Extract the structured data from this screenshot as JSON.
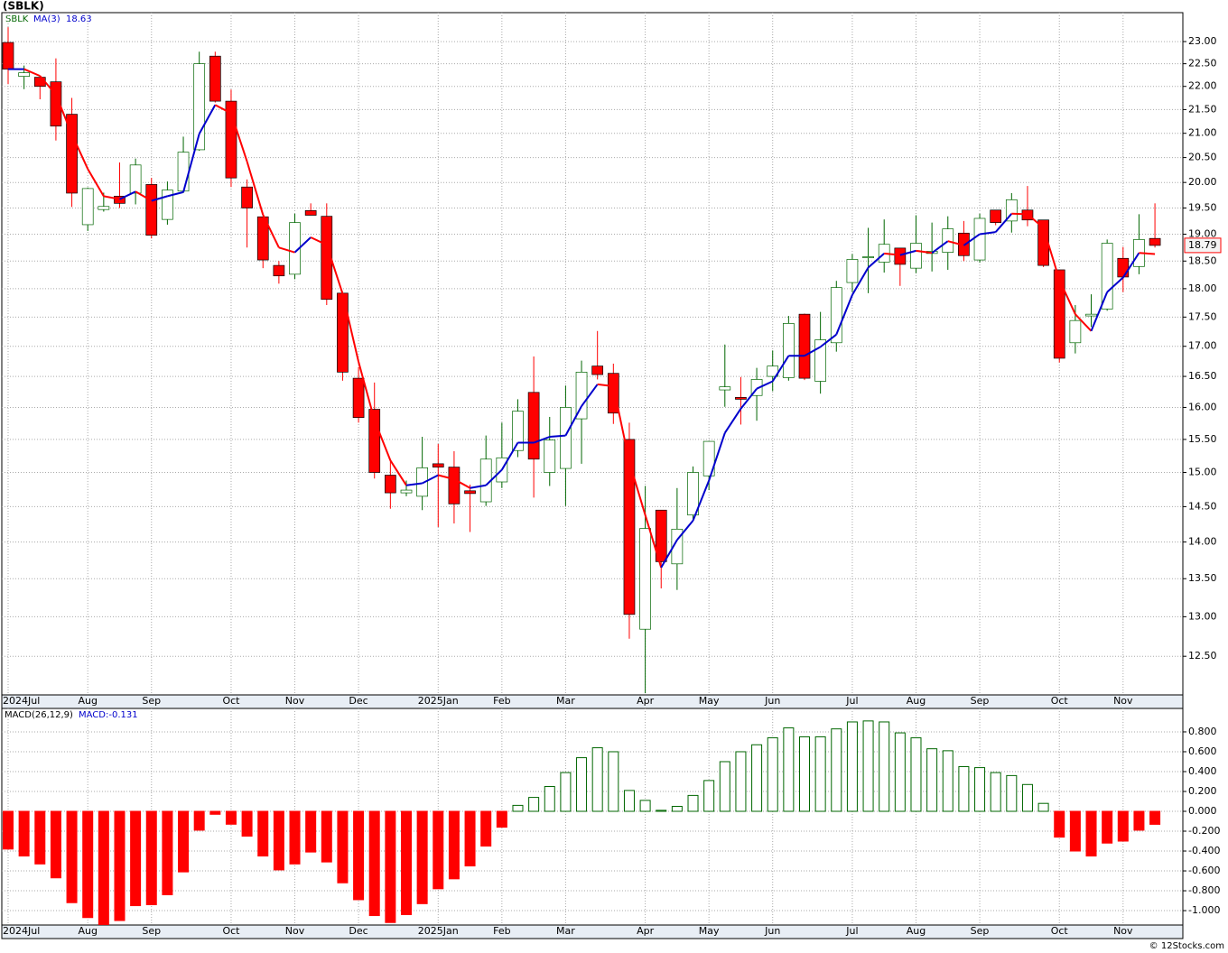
{
  "chart_data": [
    {
      "type": "candlestick",
      "title": "(SBLK)",
      "symbol_label": "SBLK",
      "symbol_color": "#006600",
      "categories": [
        "2024Jul",
        null,
        null,
        null,
        null,
        "Aug",
        null,
        null,
        null,
        "Sep",
        null,
        null,
        null,
        null,
        "Oct",
        null,
        null,
        null,
        "Nov",
        null,
        null,
        null,
        "Dec",
        null,
        null,
        null,
        null,
        "2025Jan",
        null,
        null,
        null,
        "Feb",
        null,
        null,
        null,
        "Mar",
        null,
        null,
        null,
        null,
        "Apr",
        null,
        null,
        null,
        "May",
        null,
        null,
        null,
        "Jun",
        null,
        null,
        null,
        null,
        "Jul",
        null,
        null,
        null,
        "Aug",
        null,
        null,
        null,
        "Sep",
        null,
        null,
        null,
        null,
        "Oct",
        null,
        null,
        null,
        "Nov",
        null,
        null
      ],
      "open": [
        22.98,
        22.22,
        22.2,
        22.1,
        21.4,
        19.18,
        19.47,
        19.73,
        19.79,
        19.96,
        19.28,
        19.83,
        20.66,
        22.67,
        21.68,
        19.91,
        19.33,
        18.42,
        18.26,
        19.45,
        19.34,
        17.92,
        16.47,
        15.97,
        14.96,
        14.7,
        14.65,
        15.13,
        15.08,
        14.73,
        14.57,
        14.86,
        15.33,
        16.24,
        15.0,
        15.06,
        15.82,
        16.67,
        16.55,
        15.5,
        12.84,
        14.45,
        13.7,
        14.38,
        14.95,
        16.28,
        16.16,
        16.19,
        16.5,
        16.48,
        17.55,
        16.42,
        17.06,
        18.11,
        18.56,
        18.48,
        18.74,
        18.37,
        18.64,
        18.66,
        19.02,
        18.52,
        19.46,
        19.25,
        19.46,
        19.27,
        18.34,
        17.06,
        17.52,
        17.64,
        18.55,
        18.4,
        18.92
      ],
      "high": [
        23.33,
        22.46,
        22.2,
        22.62,
        21.75,
        19.9,
        19.8,
        20.4,
        20.48,
        20.09,
        20.02,
        20.93,
        22.77,
        22.77,
        21.93,
        20.06,
        19.33,
        18.5,
        19.39,
        19.59,
        19.59,
        17.95,
        16.65,
        16.4,
        15.18,
        14.88,
        15.54,
        15.43,
        15.32,
        14.82,
        15.56,
        15.76,
        16.13,
        16.83,
        15.85,
        16.35,
        16.76,
        17.26,
        16.71,
        15.76,
        14.8,
        14.45,
        14.77,
        15.09,
        15.47,
        17.03,
        16.49,
        16.64,
        16.93,
        17.52,
        17.56,
        17.59,
        18.14,
        18.63,
        19.12,
        19.28,
        18.74,
        19.36,
        19.22,
        19.34,
        19.25,
        19.39,
        19.46,
        19.79,
        19.93,
        19.27,
        18.34,
        17.71,
        17.9,
        18.9,
        18.76,
        19.38,
        19.59
      ],
      "low": [
        22.05,
        21.94,
        21.72,
        20.85,
        19.52,
        19.06,
        19.43,
        19.5,
        19.57,
        18.92,
        19.18,
        19.79,
        20.64,
        21.65,
        19.91,
        18.75,
        18.37,
        18.09,
        18.17,
        19.36,
        17.71,
        16.43,
        15.76,
        14.91,
        14.47,
        14.65,
        14.45,
        14.21,
        14.26,
        14.14,
        14.51,
        14.77,
        15.23,
        14.63,
        14.8,
        14.51,
        15.13,
        16.45,
        15.74,
        12.72,
        12.05,
        13.37,
        13.35,
        14.32,
        14.74,
        16.01,
        15.73,
        15.79,
        16.26,
        16.43,
        16.44,
        16.22,
        16.91,
        17.94,
        17.92,
        18.29,
        18.05,
        18.28,
        18.31,
        18.34,
        18.5,
        18.47,
        19.17,
        19.03,
        19.15,
        18.39,
        16.73,
        16.88,
        17.33,
        17.61,
        17.94,
        18.26,
        18.75
      ],
      "close": [
        22.38,
        22.3,
        22.0,
        21.15,
        19.79,
        19.88,
        19.53,
        19.59,
        20.35,
        18.98,
        19.85,
        20.61,
        22.5,
        21.68,
        20.09,
        19.5,
        18.52,
        18.23,
        19.22,
        19.36,
        17.81,
        16.57,
        15.84,
        15.0,
        14.7,
        14.74,
        15.07,
        15.08,
        14.54,
        14.69,
        15.2,
        15.22,
        15.94,
        15.2,
        15.49,
        16.0,
        16.57,
        16.53,
        15.91,
        13.03,
        14.19,
        13.73,
        14.18,
        15.0,
        15.47,
        16.33,
        16.13,
        16.45,
        16.67,
        17.39,
        16.47,
        17.11,
        18.02,
        18.53,
        18.58,
        18.81,
        18.44,
        18.83,
        18.68,
        19.1,
        18.6,
        19.3,
        19.22,
        19.66,
        19.27,
        18.42,
        16.8,
        17.44,
        17.55,
        18.83,
        18.21,
        18.9,
        18.79
      ],
      "up_color": "#006600",
      "down_color": "#ff0000",
      "ma": {
        "name": "MA(3)",
        "color": "#0000cc",
        "down_color": "#ff0000",
        "values": [
          22.38,
          22.38,
          22.23,
          21.82,
          20.98,
          20.27,
          19.73,
          19.67,
          19.82,
          19.64,
          19.73,
          19.81,
          20.99,
          21.6,
          21.42,
          20.42,
          19.37,
          18.75,
          18.66,
          18.94,
          18.8,
          17.91,
          16.74,
          15.8,
          15.18,
          14.81,
          14.84,
          14.96,
          14.9,
          14.77,
          14.81,
          15.04,
          15.45,
          15.45,
          15.54,
          15.56,
          16.02,
          16.37,
          16.34,
          15.16,
          14.38,
          13.65,
          14.03,
          14.3,
          14.88,
          15.6,
          15.98,
          16.3,
          16.42,
          16.84,
          16.84,
          16.99,
          17.2,
          17.89,
          18.38,
          18.64,
          18.61,
          18.69,
          18.65,
          18.87,
          18.79,
          19.0,
          19.04,
          19.39,
          19.38,
          19.12,
          18.16,
          17.55,
          17.26,
          17.94,
          18.2,
          18.65,
          18.63
        ]
      },
      "log_scale": true,
      "ylim": [
        12.03,
        23.67
      ],
      "yticks": [
        {
          "value": 12.5,
          "label": "12.50"
        },
        {
          "value": 13,
          "label": "13.00"
        },
        {
          "value": 13.5,
          "label": "13.50"
        },
        {
          "value": 14,
          "label": "14.00"
        },
        {
          "value": 14.5,
          "label": "14.50"
        },
        {
          "value": 15,
          "label": "15.00"
        },
        {
          "value": 15.5,
          "label": "15.50"
        },
        {
          "value": 16,
          "label": "16.00"
        },
        {
          "value": 16.5,
          "label": "16.50"
        },
        {
          "value": 17,
          "label": "17.00"
        },
        {
          "value": 17.5,
          "label": "17.50"
        },
        {
          "value": 18,
          "label": "18.00"
        },
        {
          "value": 18.5,
          "label": "18.50"
        },
        {
          "value": 19,
          "label": "19.00"
        },
        {
          "value": 19.5,
          "label": "19.50"
        },
        {
          "value": 20,
          "label": "20.00"
        },
        {
          "value": 20.5,
          "label": "20.50"
        },
        {
          "value": 21,
          "label": "21.00"
        },
        {
          "value": 21.5,
          "label": "21.50"
        },
        {
          "value": 22,
          "label": "22.00"
        },
        {
          "value": 22.5,
          "label": "22.50"
        },
        {
          "value": 23,
          "label": "23.00"
        }
      ],
      "grid": true
    },
    {
      "type": "bar",
      "name": "MACD(26,12,9)",
      "value_prefix": "MACD:",
      "color": "#006600",
      "neg_color": "#ff0000",
      "values": [
        -0.38,
        -0.45,
        -0.53,
        -0.67,
        -0.92,
        -1.07,
        -1.14,
        -1.1,
        -0.95,
        -0.94,
        -0.84,
        -0.61,
        -0.19,
        -0.03,
        -0.13,
        -0.25,
        -0.45,
        -0.59,
        -0.53,
        -0.41,
        -0.51,
        -0.72,
        -0.89,
        -1.05,
        -1.12,
        -1.04,
        -0.93,
        -0.78,
        -0.68,
        -0.55,
        -0.35,
        -0.16,
        0.06,
        0.14,
        0.25,
        0.39,
        0.54,
        0.64,
        0.6,
        0.21,
        0.11,
        0.01,
        0.05,
        0.16,
        0.31,
        0.5,
        0.6,
        0.67,
        0.74,
        0.84,
        0.75,
        0.75,
        0.83,
        0.9,
        0.91,
        0.9,
        0.79,
        0.74,
        0.63,
        0.61,
        0.45,
        0.44,
        0.39,
        0.36,
        0.27,
        0.08,
        -0.26,
        -0.4,
        -0.45,
        -0.32,
        -0.3,
        -0.19,
        -0.131
      ],
      "ylim": [
        -1.145,
        1.036
      ],
      "yticks": [
        {
          "value": -1,
          "label": "-1.000"
        },
        {
          "value": -0.8,
          "label": "-0.800"
        },
        {
          "value": -0.6,
          "label": "-0.600"
        },
        {
          "value": -0.4,
          "label": "-0.400"
        },
        {
          "value": -0.2,
          "label": "-0.200"
        },
        {
          "value": 0,
          "label": "0.000"
        },
        {
          "value": 0.2,
          "label": "0.200"
        },
        {
          "value": 0.4,
          "label": "0.400"
        },
        {
          "value": 0.6,
          "label": "0.600"
        },
        {
          "value": 0.8,
          "label": "0.800"
        }
      ],
      "grid": true
    }
  ],
  "footer": "© 12Stocks.com"
}
